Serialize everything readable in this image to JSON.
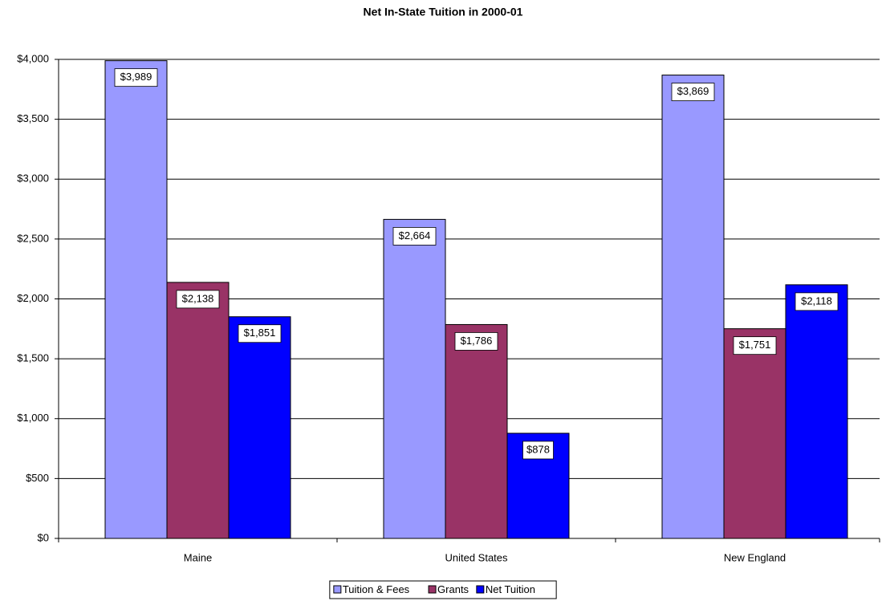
{
  "chart_data": {
    "type": "bar",
    "title": "Net In-State Tuition in 2000-01",
    "categories": [
      "Maine",
      "United States",
      "New England"
    ],
    "series": [
      {
        "name": "Tuition & Fees",
        "color": "#9999ff",
        "values": [
          3989,
          2664,
          3869
        ],
        "value_labels": [
          "$3,989",
          "$2,664",
          "$3,869"
        ]
      },
      {
        "name": "Grants",
        "color": "#993366",
        "values": [
          2138,
          1786,
          1751
        ],
        "value_labels": [
          "$2,138",
          "$1,786",
          "$1,751"
        ]
      },
      {
        "name": "Net Tuition",
        "color": "#0000ff",
        "values": [
          1851,
          878,
          2118
        ],
        "value_labels": [
          "$1,851",
          "$878",
          "$2,118"
        ]
      }
    ],
    "ylim": [
      0,
      4000
    ],
    "yticks": [
      {
        "value": 0,
        "label": "$0"
      },
      {
        "value": 500,
        "label": "$500"
      },
      {
        "value": 1000,
        "label": "$1,000"
      },
      {
        "value": 1500,
        "label": "$1,500"
      },
      {
        "value": 2000,
        "label": "$2,000"
      },
      {
        "value": 2500,
        "label": "$2,500"
      },
      {
        "value": 3000,
        "label": "$3,000"
      },
      {
        "value": 3500,
        "label": "$3,500"
      },
      {
        "value": 4000,
        "label": "$4,000"
      }
    ],
    "grid": true,
    "legend": "bottom"
  }
}
